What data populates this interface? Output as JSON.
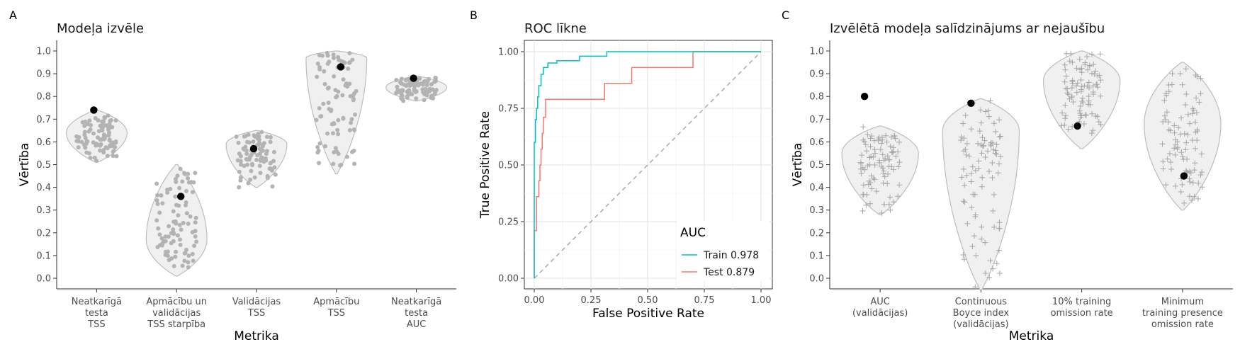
{
  "chart_data": [
    {
      "panel": "A",
      "type": "violin",
      "title": "Modeļa izvēle",
      "xlabel": "Metrika",
      "ylabel": "Vērtība",
      "ylim": [
        0,
        1
      ],
      "yticks": [
        "0.0",
        "0.1",
        "0.2",
        "0.3",
        "0.4",
        "0.5",
        "0.6",
        "0.7",
        "0.8",
        "0.9",
        "1.0"
      ],
      "categories": [
        [
          "Neatkarīgā",
          "testa",
          "TSS"
        ],
        [
          "Apmācību un",
          "validācijas",
          "TSS starpība"
        ],
        [
          "Validācijas",
          "TSS"
        ],
        [
          "Apmācību",
          "TSS"
        ],
        [
          "Neatkarīgā",
          "testa",
          "AUC"
        ]
      ],
      "distributions": [
        {
          "min": 0.51,
          "max": 0.74,
          "mode": 0.64
        },
        {
          "min": 0.01,
          "max": 0.5,
          "mode": 0.17
        },
        {
          "min": 0.4,
          "max": 0.65,
          "mode": 0.59
        },
        {
          "min": 0.46,
          "max": 1.0,
          "mode": 0.97
        },
        {
          "min": 0.78,
          "max": 0.89,
          "mode": 0.84
        }
      ],
      "selected": [
        0.74,
        0.36,
        0.57,
        0.93,
        0.88
      ]
    },
    {
      "panel": "B",
      "type": "line",
      "title": "ROC līkne",
      "xlabel": "False Positive Rate",
      "ylabel": "True Positive Rate",
      "xlim": [
        0,
        1
      ],
      "ylim": [
        0,
        1
      ],
      "xticks": [
        "0.00",
        "0.25",
        "0.50",
        "0.75",
        "1.00"
      ],
      "yticks": [
        "0.00",
        "0.25",
        "0.50",
        "0.75",
        "1.00"
      ],
      "legend_title": "AUC",
      "legend_position": "bottom-right",
      "series": [
        {
          "name": "Train 0.978",
          "color": "#00BFC4",
          "x": [
            0,
            0,
            0.005,
            0.005,
            0.01,
            0.01,
            0.015,
            0.015,
            0.02,
            0.02,
            0.03,
            0.03,
            0.04,
            0.04,
            0.06,
            0.06,
            0.1,
            0.1,
            0.2,
            0.2,
            0.32,
            0.32,
            0.5,
            1.0
          ],
          "y": [
            0,
            0.6,
            0.6,
            0.7,
            0.7,
            0.75,
            0.75,
            0.8,
            0.8,
            0.85,
            0.85,
            0.9,
            0.9,
            0.93,
            0.93,
            0.95,
            0.95,
            0.96,
            0.96,
            0.98,
            0.98,
            1.0,
            1.0,
            1.0
          ]
        },
        {
          "name": "Test 0.879",
          "color": "#F8766D",
          "x": [
            0,
            0,
            0.01,
            0.01,
            0.02,
            0.02,
            0.025,
            0.025,
            0.03,
            0.03,
            0.035,
            0.035,
            0.04,
            0.04,
            0.05,
            0.05,
            0.31,
            0.31,
            0.43,
            0.43,
            0.7,
            0.7,
            1.0
          ],
          "y": [
            0,
            0.21,
            0.21,
            0.36,
            0.36,
            0.43,
            0.43,
            0.5,
            0.5,
            0.57,
            0.57,
            0.64,
            0.64,
            0.71,
            0.71,
            0.79,
            0.79,
            0.86,
            0.86,
            0.93,
            0.93,
            1.0,
            1.0
          ]
        }
      ],
      "diagonal": [
        [
          0,
          0
        ],
        [
          1,
          1
        ]
      ]
    },
    {
      "panel": "C",
      "type": "violin",
      "title": "Izvēlētā modeļa salīdzinājums ar nejaušību",
      "xlabel": "Metrika",
      "ylabel": "Vērtība",
      "ylim": [
        0,
        1
      ],
      "yticks": [
        "0.0",
        "0.1",
        "0.2",
        "0.3",
        "0.4",
        "0.5",
        "0.6",
        "0.7",
        "0.8",
        "0.9",
        "1.0"
      ],
      "categories": [
        [
          "AUC",
          "(validācijas)"
        ],
        [
          "Continuous",
          "Boyce index",
          "(validācijas)"
        ],
        [
          "10% training",
          "omission rate"
        ],
        [
          "Minimum",
          "training presence",
          "omission rate"
        ]
      ],
      "distributions": [
        {
          "min": 0.28,
          "max": 0.67,
          "mode": 0.55
        },
        {
          "min": -0.05,
          "max": 0.79,
          "mode": 0.65
        },
        {
          "min": 0.57,
          "max": 1.0,
          "mode": 0.87
        },
        {
          "min": 0.3,
          "max": 0.95,
          "mode": 0.68
        }
      ],
      "selected": [
        0.8,
        0.77,
        0.67,
        0.45
      ]
    }
  ],
  "panel_tags": [
    "A",
    "B",
    "C"
  ]
}
